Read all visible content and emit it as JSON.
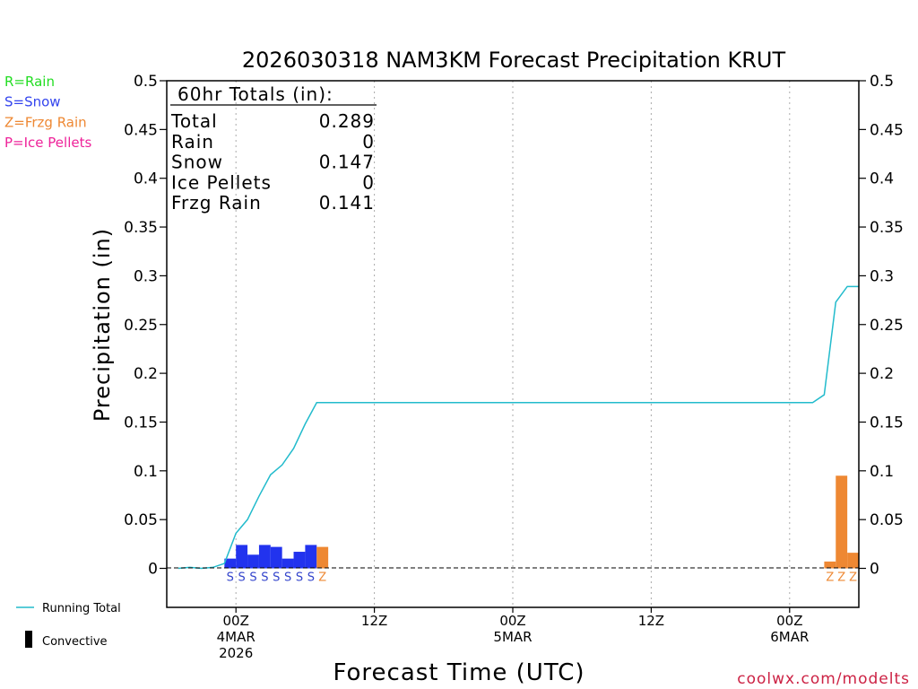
{
  "chart_data": {
    "type": "bar",
    "title": "2026030318 NAM3KM Forecast Precipitation KRUT",
    "xlabel": "Forecast Time (UTC)",
    "ylabel": "Precipitation (in)",
    "ylim": [
      -0.04,
      0.5
    ],
    "y_ticks": [
      0,
      0.05,
      0.1,
      0.15,
      0.2,
      0.25,
      0.3,
      0.35,
      0.4,
      0.45,
      0.5
    ],
    "y_tick_labels": [
      "0",
      "0.05",
      "0.1",
      "0.15",
      "0.2",
      "0.25",
      "0.3",
      "0.35",
      "0.4",
      "0.45",
      "0.5"
    ],
    "x_range_hours": [
      -6,
      54
    ],
    "x_ticks": [
      {
        "hour": 0,
        "lines": [
          "00Z",
          "4MAR",
          "2026"
        ]
      },
      {
        "hour": 12,
        "lines": [
          "12Z"
        ]
      },
      {
        "hour": 24,
        "lines": [
          "00Z",
          "5MAR"
        ]
      },
      {
        "hour": 36,
        "lines": [
          "12Z"
        ]
      },
      {
        "hour": 48,
        "lines": [
          "00Z",
          "6MAR"
        ]
      }
    ],
    "legend": {
      "types": [
        {
          "text": "R=Rain",
          "color": "#22dd22"
        },
        {
          "text": "S=Snow",
          "color": "#3344ee"
        },
        {
          "text": "Z=Frzg Rain",
          "color": "#ee8833"
        },
        {
          "text": "P=Ice Pellets",
          "color": "#ee2299"
        }
      ],
      "running_total_label": "Running Total",
      "running_total_color": "#22bbcc",
      "convective_label": "Convective"
    },
    "totals_box": {
      "heading": "60hr Totals (in):",
      "rows": [
        {
          "label": "Total",
          "value": "0.289"
        },
        {
          "label": "Rain",
          "value": "0"
        },
        {
          "label": "Snow",
          "value": "0.147"
        },
        {
          "label": "Ice Pellets",
          "value": "0"
        },
        {
          "label": "Frzg Rain",
          "value": "0.141"
        }
      ]
    },
    "bars": [
      {
        "start_hour": -1,
        "value": 0.01,
        "ptype": "S"
      },
      {
        "start_hour": 0,
        "value": 0.024,
        "ptype": "S"
      },
      {
        "start_hour": 1,
        "value": 0.014,
        "ptype": "S"
      },
      {
        "start_hour": 2,
        "value": 0.024,
        "ptype": "S"
      },
      {
        "start_hour": 3,
        "value": 0.022,
        "ptype": "S"
      },
      {
        "start_hour": 4,
        "value": 0.01,
        "ptype": "S"
      },
      {
        "start_hour": 5,
        "value": 0.017,
        "ptype": "S"
      },
      {
        "start_hour": 6,
        "value": 0.024,
        "ptype": "S"
      },
      {
        "start_hour": 7,
        "value": 0.022,
        "ptype": "Z"
      },
      {
        "start_hour": 51,
        "value": 0.007,
        "ptype": "Z"
      },
      {
        "start_hour": 52,
        "value": 0.095,
        "ptype": "Z"
      },
      {
        "start_hour": 53,
        "value": 0.016,
        "ptype": "Z"
      }
    ],
    "running_total": {
      "hours": [
        -5,
        -4,
        -3,
        -2,
        -1,
        0,
        1,
        2,
        3,
        4,
        5,
        6,
        7,
        8,
        50,
        51,
        52,
        53,
        54
      ],
      "values": [
        0,
        0.001,
        0,
        0.001,
        0.005,
        0.036,
        0.05,
        0.074,
        0.096,
        0.106,
        0.123,
        0.148,
        0.17,
        0.17,
        0.17,
        0.178,
        0.273,
        0.289,
        0.289
      ]
    },
    "type_color_map": {
      "S": "#2233ee",
      "Z": "#ee8833",
      "R": "#22dd22",
      "P": "#ee2299"
    },
    "type_label_color_map": {
      "S": "#3344cc",
      "Z": "#ee8833",
      "R": "#22dd22",
      "P": "#ee2299"
    }
  },
  "credit": "coolwx.com/modelts"
}
